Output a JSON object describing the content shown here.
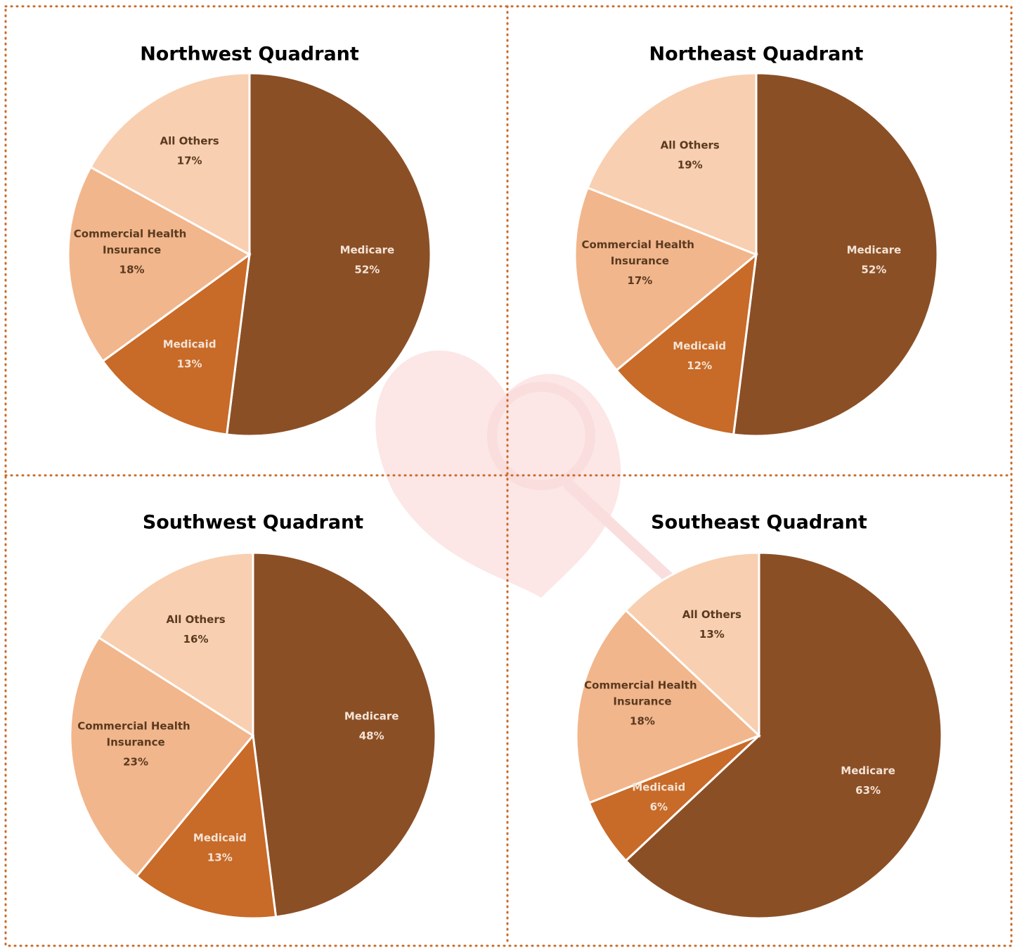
{
  "chart_data": [
    {
      "type": "pie",
      "title": "Northwest Quadrant",
      "categories": [
        "Medicare",
        "Medicaid",
        "Commercial Health Insurance",
        "All Others"
      ],
      "values": [
        52,
        13,
        18,
        17
      ],
      "value_labels": [
        "52%",
        "13%",
        "18%",
        "17%"
      ],
      "colors": [
        "#8b4f26",
        "#c86a28",
        "#f2b68c",
        "#f8cfb0"
      ]
    },
    {
      "type": "pie",
      "title": "Northeast Quadrant",
      "categories": [
        "Medicare",
        "Medicaid",
        "Commercial Health Insurance",
        "All Others"
      ],
      "values": [
        52,
        12,
        17,
        19
      ],
      "value_labels": [
        "52%",
        "12%",
        "17%",
        "19%"
      ],
      "colors": [
        "#8b4f26",
        "#c86a28",
        "#f2b68c",
        "#f8cfb0"
      ]
    },
    {
      "type": "pie",
      "title": "Southwest Quadrant",
      "categories": [
        "Medicare",
        "Medicaid",
        "Commercial Health Insurance",
        "All Others"
      ],
      "values": [
        48,
        13,
        23,
        16
      ],
      "value_labels": [
        "48%",
        "13%",
        "23%",
        "16%"
      ],
      "colors": [
        "#8b4f26",
        "#c86a28",
        "#f2b68c",
        "#f8cfb0"
      ]
    },
    {
      "type": "pie",
      "title": "Southeast Quadrant",
      "categories": [
        "Medicare",
        "Medicaid",
        "Commercial Health Insurance",
        "All Others"
      ],
      "values": [
        63,
        6,
        18,
        13
      ],
      "value_labels": [
        "63%",
        "6%",
        "18%",
        "13%"
      ],
      "colors": [
        "#8b4f26",
        "#c86a28",
        "#f2b68c",
        "#f8cfb0"
      ]
    }
  ]
}
